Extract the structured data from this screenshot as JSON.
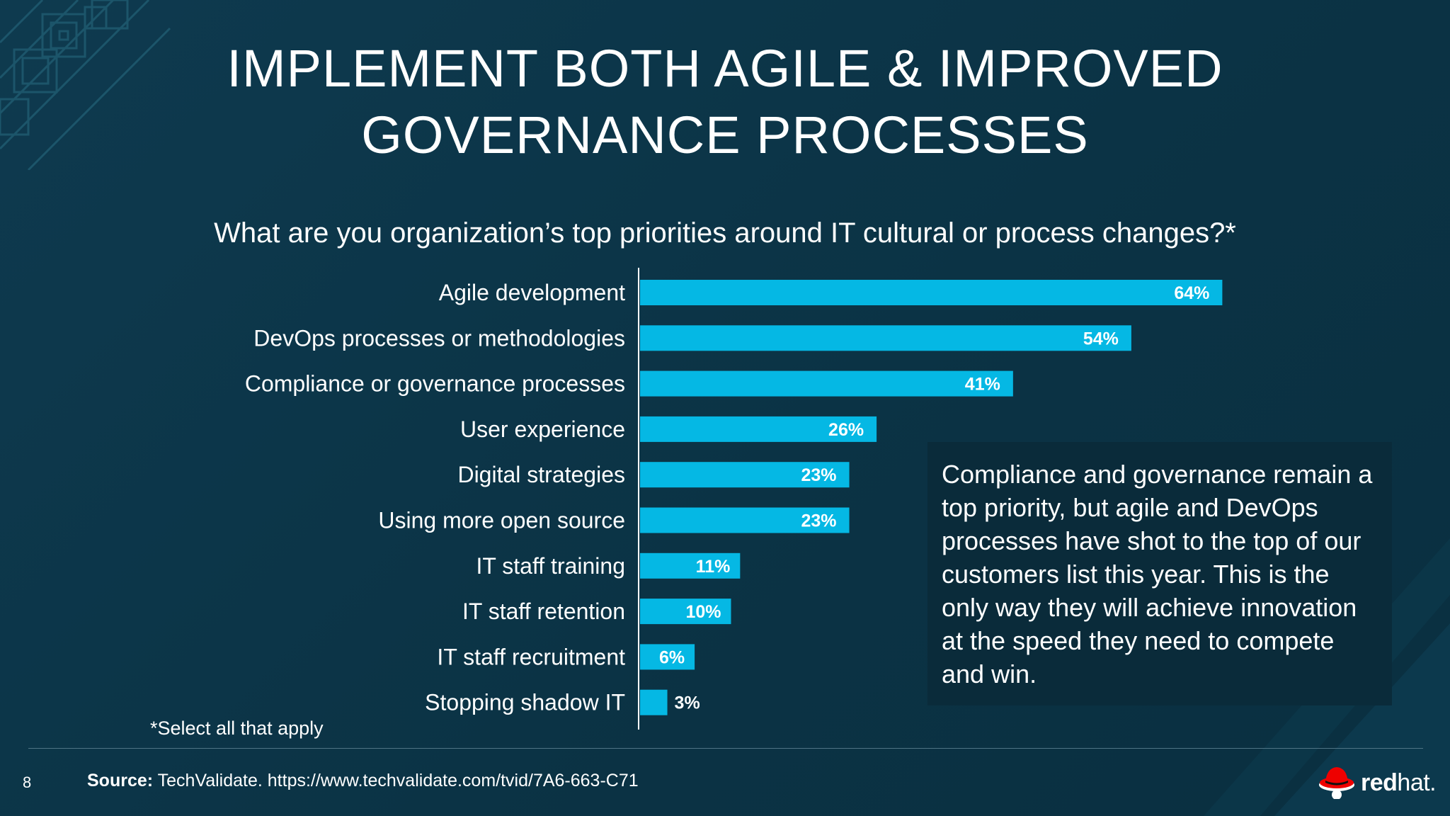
{
  "slide": {
    "title_line1": "IMPLEMENT BOTH AGILE & IMPROVED",
    "title_line2": "GOVERNANCE PROCESSES",
    "question": "What are you organization’s top priorities around IT cultural or process changes?*",
    "footnote": "*Select all that apply",
    "callout": "Compliance and governance remain a top priority, but agile and DevOps processes have shot to the top of our customers list this year.  This is the only way they will achieve innovation at the speed they need to compete and win.",
    "page_number": "8",
    "source_label": "Source:",
    "source_text": "TechValidate. https://www.techvalidate.com/tvid/7A6-663-C71",
    "logo": {
      "red": "red",
      "hat": "hat.",
      "icon": "redhat-fedora-icon"
    },
    "colors": {
      "background": "#0c3548",
      "bar": "#05b8e4",
      "callout_bg": "#0a2b3a"
    }
  },
  "chart_data": {
    "type": "bar",
    "orientation": "horizontal",
    "categories": [
      "Agile development",
      "DevOps processes or methodologies",
      "Compliance or governance processes",
      "User experience",
      "Digital strategies",
      "Using more open source",
      "IT staff training",
      "IT staff retention",
      "IT staff recruitment",
      "Stopping shadow IT"
    ],
    "values": [
      64,
      54,
      41,
      26,
      23,
      23,
      11,
      10,
      6,
      3
    ],
    "value_labels": [
      "64%",
      "54%",
      "41%",
      "26%",
      "23%",
      "23%",
      "11%",
      "10%",
      "6%",
      "3%"
    ],
    "unit": "%",
    "xlim": [
      0,
      100
    ],
    "grid": false,
    "legend": "none"
  }
}
